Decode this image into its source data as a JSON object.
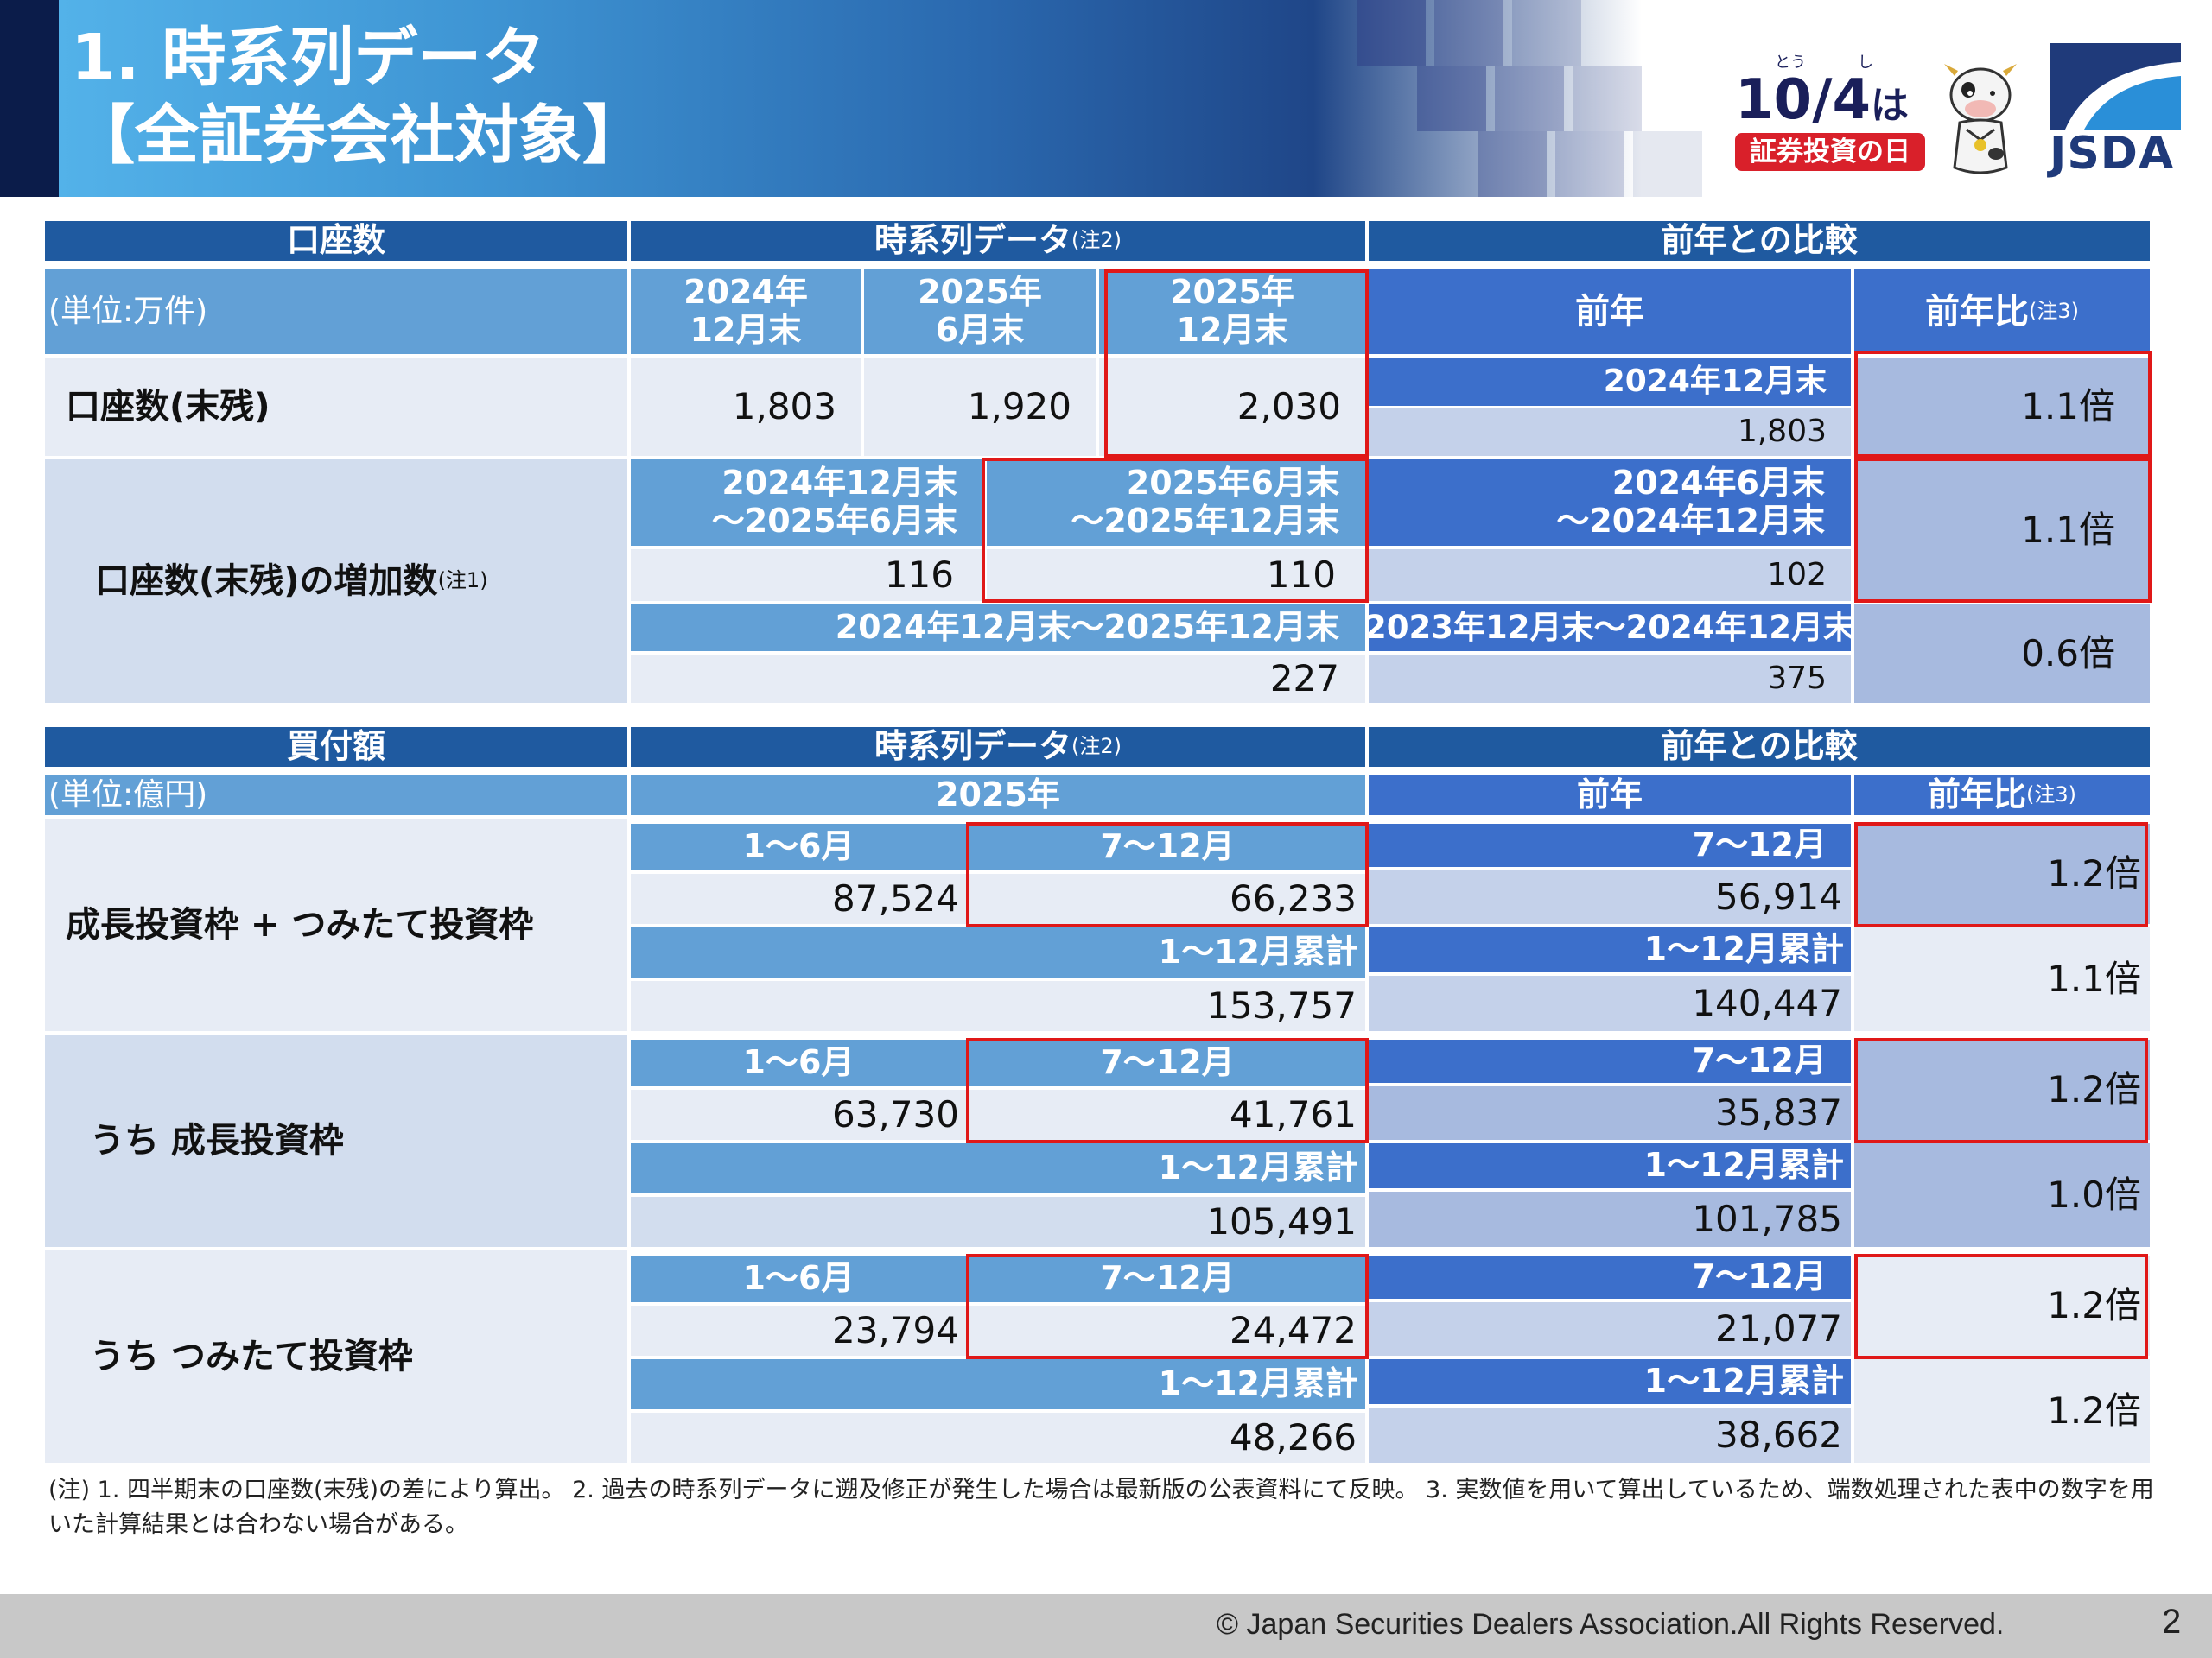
{
  "header": {
    "title_line1": "1. 時系列データ",
    "title_line2": "【全証券会社対象】"
  },
  "logos": {
    "campaign_main": "10/4",
    "campaign_ha": "は",
    "ruby_to": "とう",
    "ruby_shi": "し",
    "campaign_day": "証券投資の日",
    "org": "JSDA"
  },
  "accounts": {
    "title": "口座数",
    "series_header": "時系列データ",
    "series_note": "(注2)",
    "compare_header": "前年との比較",
    "unit": "(単位:万件)",
    "col_2024_12": [
      "2024年",
      "12月末"
    ],
    "col_2025_06": [
      "2025年",
      "6月末"
    ],
    "col_2025_12": [
      "2025年",
      "12月末"
    ],
    "prev_year": "前年",
    "ratio_label": "前年比",
    "ratio_note": "(注3)",
    "balance_label": "口座数(末残)",
    "balance_values": [
      "1,803",
      "1,920",
      "2,030"
    ],
    "balance_prev_label": "2024年12月末",
    "balance_prev_value": "1,803",
    "balance_ratio": "1.1倍",
    "increase_label": "口座数(末残)の増加数",
    "increase_note": "(注1)",
    "period1": [
      "2024年12月末",
      "～2025年6月末"
    ],
    "period2": [
      "2025年6月末",
      "～2025年12月末"
    ],
    "period_prev": [
      "2024年6月末",
      "～2024年12月末"
    ],
    "increase_values": [
      "116",
      "110"
    ],
    "increase_prev_value": "102",
    "increase_ratio": "1.1倍",
    "annual_period": "2024年12月末～2025年12月末",
    "annual_prev_period": "2023年12月末～2024年12月末",
    "annual_value": "227",
    "annual_prev_value": "375",
    "annual_ratio": "0.6倍"
  },
  "purchases": {
    "title": "買付額",
    "series_header": "時系列データ",
    "series_note": "(注2)",
    "compare_header": "前年との比較",
    "unit": "(単位:億円)",
    "year": "2025年",
    "prev_year": "前年",
    "ratio_label": "前年比",
    "ratio_note": "(注3)",
    "h1": "1～6月",
    "h2": "7～12月",
    "cum": "1～12月累計",
    "sections": [
      {
        "label": "成長投資枠 + つみたて投資枠",
        "h1_value": "87,524",
        "h2_value": "66,233",
        "prev_h2_value": "56,914",
        "h2_ratio": "1.2倍",
        "cum_value": "153,757",
        "prev_cum_value": "140,447",
        "cum_ratio": "1.1倍"
      },
      {
        "label": "うち 成長投資枠",
        "h1_value": "63,730",
        "h2_value": "41,761",
        "prev_h2_value": "35,837",
        "h2_ratio": "1.2倍",
        "cum_value": "105,491",
        "prev_cum_value": "101,785",
        "cum_ratio": "1.0倍"
      },
      {
        "label": "うち つみたて投資枠",
        "h1_value": "23,794",
        "h2_value": "24,472",
        "prev_h2_value": "21,077",
        "h2_ratio": "1.2倍",
        "cum_value": "48,266",
        "prev_cum_value": "38,662",
        "cum_ratio": "1.2倍"
      }
    ]
  },
  "footnote": "(注) 1. 四半期末の口座数(末残)の差により算出。 2. 過去の時系列データに遡及修正が発生した場合は最新版の公表資料にて反映。 3. 実数値を用いて算出しているため、端数処理された表中の数字を用いた計算結果とは合わない場合がある。",
  "footer": {
    "copyright": "© Japan Securities Dealers Association.All Rights Reserved.",
    "page": "2"
  }
}
